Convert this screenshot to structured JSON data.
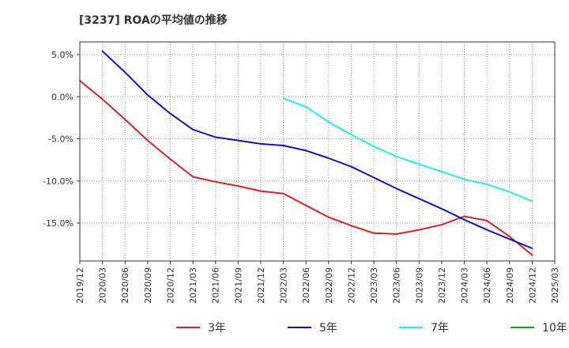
{
  "chart_data": {
    "type": "line",
    "title": "[3237]  ROAの平均値の推移",
    "xlabel": "",
    "ylabel": "",
    "x_ticks": [
      "2019/12",
      "2020/03",
      "2020/06",
      "2020/09",
      "2020/12",
      "2021/03",
      "2021/06",
      "2021/09",
      "2021/12",
      "2022/03",
      "2022/06",
      "2022/09",
      "2022/12",
      "2023/03",
      "2023/06",
      "2023/09",
      "2023/12",
      "2024/03",
      "2024/06",
      "2024/09",
      "2024/12",
      "2025/03"
    ],
    "y_ticks": [
      5.0,
      0.0,
      -5.0,
      -10.0,
      -15.0
    ],
    "y_tick_labels": [
      "5.0%",
      "0.0%",
      "-5.0%",
      "-10.0%",
      "-15.0%"
    ],
    "ylim": [
      -19.5,
      6.5
    ],
    "grid": true,
    "legend_position": "bottom",
    "series": [
      {
        "name": "3年",
        "color": "#e02020",
        "x": [
          "2019/12",
          "2020/03",
          "2020/06",
          "2020/09",
          "2020/12",
          "2021/03",
          "2021/06",
          "2021/09",
          "2021/12",
          "2022/03",
          "2022/06",
          "2022/09",
          "2022/12",
          "2023/03",
          "2023/06",
          "2023/09",
          "2023/12",
          "2024/03",
          "2024/06",
          "2024/09",
          "2024/12"
        ],
        "values": [
          1.9,
          -0.3,
          -2.7,
          -5.2,
          -7.4,
          -9.5,
          -10.1,
          -10.6,
          -11.2,
          -11.5,
          -12.9,
          -14.3,
          -15.3,
          -16.2,
          -16.3,
          -15.8,
          -15.2,
          -14.2,
          -14.7,
          -16.6,
          -18.8
        ]
      },
      {
        "name": "5年",
        "color": "#1010cc",
        "x": [
          "2020/03",
          "2020/06",
          "2020/09",
          "2020/12",
          "2021/03",
          "2021/06",
          "2021/09",
          "2021/12",
          "2022/03",
          "2022/06",
          "2022/09",
          "2022/12",
          "2023/03",
          "2023/06",
          "2023/09",
          "2023/12",
          "2024/03",
          "2024/06",
          "2024/09",
          "2024/12"
        ],
        "values": [
          5.4,
          2.9,
          0.2,
          -2.0,
          -3.9,
          -4.8,
          -5.2,
          -5.6,
          -5.8,
          -6.4,
          -7.3,
          -8.3,
          -9.6,
          -10.9,
          -12.1,
          -13.3,
          -14.6,
          -15.8,
          -16.9,
          -18.0
        ]
      },
      {
        "name": "7年",
        "color": "#22eeee",
        "x": [
          "2022/03",
          "2022/06",
          "2022/09",
          "2022/12",
          "2023/03",
          "2023/06",
          "2023/09",
          "2023/12",
          "2024/03",
          "2024/06",
          "2024/09",
          "2024/12"
        ],
        "values": [
          -0.2,
          -1.2,
          -3.0,
          -4.5,
          -5.9,
          -7.1,
          -8.0,
          -8.9,
          -9.8,
          -10.4,
          -11.3,
          -12.4
        ]
      },
      {
        "name": "10年",
        "color": "#229922",
        "x": [],
        "values": []
      }
    ]
  }
}
